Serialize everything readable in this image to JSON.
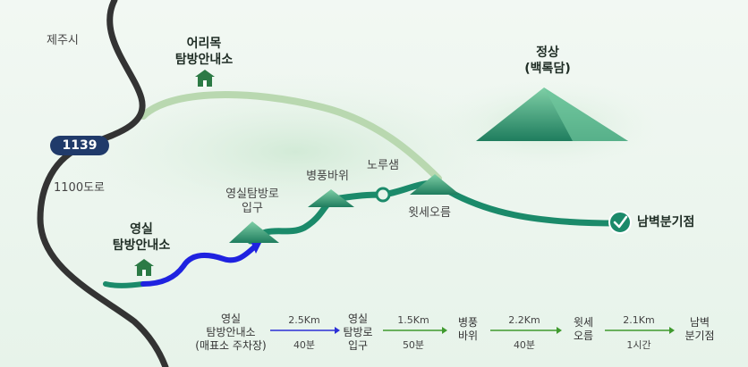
{
  "places": {
    "jeju_city": "제주시",
    "road_1100": "1100도로",
    "road_number": "1139",
    "summit": "정상\n(백록담)",
    "eorimok": "어리목\n탐방안내소",
    "yeongsil_center": "영실\n탐방안내소",
    "yeongsil_entrance": "영실탐방로\n입구",
    "byeongpung": "병풍바위",
    "noru": "노루샘",
    "witse": "윗세오름",
    "nambyeok": "남벽분기점"
  },
  "route_sequence": [
    {
      "name": "영실\n탐방안내소\n(매표소 주차장)"
    },
    {
      "name": "영실\n탐방로\n입구"
    },
    {
      "name": "병풍\n바위"
    },
    {
      "name": "윗세\n오름"
    },
    {
      "name": "남벽\n분기점"
    }
  ],
  "route_segments": [
    {
      "distance": "2.5Km",
      "time": "40분",
      "color": "#2b2fd6"
    },
    {
      "distance": "1.5Km",
      "time": "50분",
      "color": "#3f9a2e"
    },
    {
      "distance": "2.2Km",
      "time": "40분",
      "color": "#3f9a2e"
    },
    {
      "distance": "2.1Km",
      "time": "1시간",
      "color": "#3f9a2e"
    }
  ],
  "colors": {
    "road": "#3a3a3a",
    "trail_main": "#1b8a6a",
    "trail_eorimok": "#b9d8b0",
    "trail_blue": "#1f22e0",
    "mountain": "#2e8a6b",
    "hut": "#2c7a45"
  }
}
